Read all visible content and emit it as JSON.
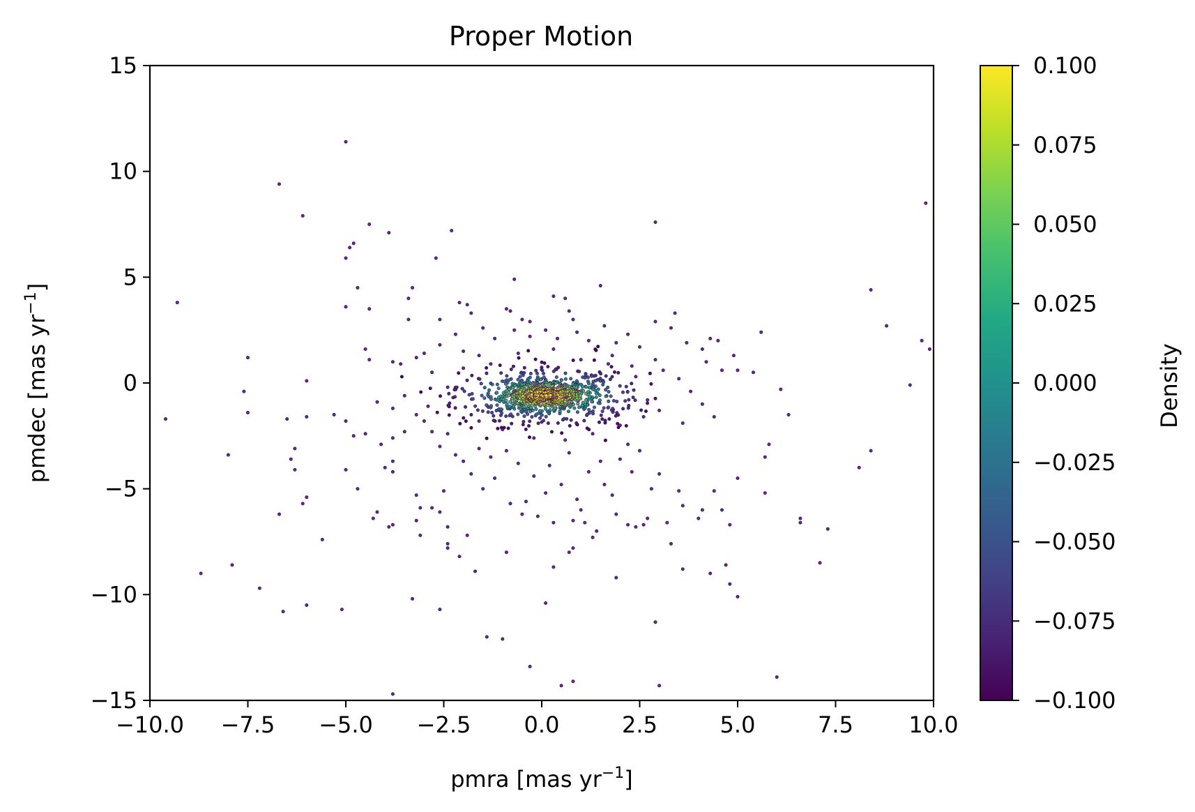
{
  "chart_data": {
    "type": "scatter",
    "title": "Proper Motion",
    "xlabel": "pmra [mas yr",
    "ylabel": "pmdec [mas yr",
    "label_unit_exponent": "−1",
    "label_close": "]",
    "xlim": [
      -10,
      10
    ],
    "ylim": [
      -15,
      15
    ],
    "xticks": [
      -10,
      -7.5,
      -5,
      -2.5,
      0,
      2.5,
      5,
      7.5,
      10
    ],
    "xtick_labels": [
      "−10.0",
      "−7.5",
      "−5.0",
      "−2.5",
      "0.0",
      "2.5",
      "5.0",
      "7.5",
      "10.0"
    ],
    "yticks": [
      -15,
      -10,
      -5,
      0,
      5,
      10,
      15
    ],
    "ytick_labels": [
      "−15",
      "−10",
      "−5",
      "0",
      "5",
      "10",
      "15"
    ],
    "grid": false,
    "colormap": "viridis",
    "colorbar": {
      "label": "Density",
      "range": [
        -0.1,
        0.1
      ],
      "ticks": [
        -0.1,
        -0.075,
        -0.05,
        -0.025,
        0,
        0.025,
        0.05,
        0.075,
        0.1
      ],
      "tick_labels": [
        "−0.100",
        "−0.075",
        "−0.050",
        "−0.025",
        "0.000",
        "0.025",
        "0.050",
        "0.075",
        "0.100"
      ]
    },
    "cluster_center": [
      0.1,
      -0.6
    ],
    "points": [
      [
        -5.0,
        11.4
      ],
      [
        -6.7,
        9.4
      ],
      [
        -6.1,
        7.9
      ],
      [
        -4.4,
        7.5
      ],
      [
        -3.9,
        7.1
      ],
      [
        -2.3,
        7.2
      ],
      [
        2.9,
        7.6
      ],
      [
        9.8,
        8.5
      ],
      [
        -9.3,
        3.8
      ],
      [
        -4.9,
        6.4
      ],
      [
        -4.8,
        6.6
      ],
      [
        -5.0,
        5.9
      ],
      [
        -2.7,
        5.9
      ],
      [
        -3.3,
        4.5
      ],
      [
        -4.7,
        4.5
      ],
      [
        -5.0,
        3.6
      ],
      [
        -4.4,
        3.5
      ],
      [
        -3.4,
        4.0
      ],
      [
        -3.4,
        3.0
      ],
      [
        -2.6,
        3.0
      ],
      [
        -2.1,
        3.8
      ],
      [
        -1.9,
        3.7
      ],
      [
        -1.8,
        3.3
      ],
      [
        -0.9,
        3.5
      ],
      [
        -0.8,
        3.4
      ],
      [
        -0.3,
        2.9
      ],
      [
        0.3,
        4.1
      ],
      [
        0.6,
        4.0
      ],
      [
        0.7,
        3.4
      ],
      [
        1.5,
        4.6
      ],
      [
        -0.7,
        4.9
      ],
      [
        2.9,
        2.9
      ],
      [
        3.4,
        3.3
      ],
      [
        3.3,
        2.6
      ],
      [
        4.3,
        2.1
      ],
      [
        4.5,
        2.0
      ],
      [
        5.6,
        2.4
      ],
      [
        8.4,
        4.4
      ],
      [
        8.8,
        2.7
      ],
      [
        9.7,
        2.0
      ],
      [
        9.9,
        1.6
      ],
      [
        -7.5,
        1.2
      ],
      [
        -4.5,
        1.6
      ],
      [
        -4.4,
        1.1
      ],
      [
        -3.8,
        1.0
      ],
      [
        -3.6,
        0.9
      ],
      [
        -3.2,
        1.2
      ],
      [
        3.7,
        1.9
      ],
      [
        4.1,
        1.6
      ],
      [
        4.2,
        1.0
      ],
      [
        4.6,
        0.6
      ],
      [
        4.9,
        1.3
      ],
      [
        5.0,
        0.6
      ],
      [
        5.4,
        0.5
      ],
      [
        -6.0,
        0.1
      ],
      [
        -7.6,
        -0.4
      ],
      [
        -9.6,
        -1.7
      ],
      [
        -7.5,
        -1.4
      ],
      [
        -6.5,
        -1.7
      ],
      [
        -6.0,
        -1.6
      ],
      [
        -5.3,
        -1.5
      ],
      [
        -5.0,
        -1.8
      ],
      [
        -4.8,
        -2.5
      ],
      [
        -4.5,
        -2.4
      ],
      [
        -4.1,
        -2.9
      ],
      [
        -3.8,
        -2.6
      ],
      [
        -3.5,
        -2.3
      ],
      [
        -3.2,
        -1.5
      ],
      [
        -3.0,
        -1.8
      ],
      [
        -2.8,
        -2.3
      ],
      [
        -2.6,
        -3.0
      ],
      [
        -2.4,
        -2.4
      ],
      [
        -8.0,
        -3.4
      ],
      [
        -6.3,
        -3.1
      ],
      [
        -6.4,
        -3.6
      ],
      [
        -6.3,
        -4.1
      ],
      [
        -5.6,
        -7.4
      ],
      [
        -6.0,
        -5.4
      ],
      [
        -6.1,
        -5.7
      ],
      [
        -6.7,
        -6.2
      ],
      [
        -5.0,
        -4.1
      ],
      [
        -4.7,
        -5.0
      ],
      [
        -4.0,
        -4.0
      ],
      [
        -3.8,
        -3.7
      ],
      [
        -3.8,
        -4.2
      ],
      [
        -4.2,
        -6.1
      ],
      [
        -4.3,
        -6.4
      ],
      [
        -3.9,
        -6.8
      ],
      [
        -3.8,
        -6.7
      ],
      [
        -3.2,
        -5.3
      ],
      [
        -3.1,
        -5.9
      ],
      [
        -3.2,
        -6.5
      ],
      [
        -3.1,
        -7.2
      ],
      [
        -2.6,
        -6.1
      ],
      [
        -2.8,
        -5.9
      ],
      [
        -2.4,
        -6.8
      ],
      [
        -2.4,
        -7.6
      ],
      [
        -2.4,
        -7.8
      ],
      [
        -2.1,
        -8.2
      ],
      [
        -1.9,
        -7.2
      ],
      [
        -1.7,
        -8.9
      ],
      [
        -0.9,
        -8.0
      ],
      [
        -0.5,
        -6.2
      ],
      [
        -0.1,
        -6.3
      ],
      [
        0.3,
        -6.6
      ],
      [
        0.8,
        -6.5
      ],
      [
        1.1,
        -6.6
      ],
      [
        1.4,
        -7.0
      ],
      [
        0.8,
        -7.8
      ],
      [
        0.7,
        -8.0
      ],
      [
        0.3,
        -8.7
      ],
      [
        1.9,
        -9.2
      ],
      [
        1.3,
        -7.3
      ],
      [
        2.2,
        -6.7
      ],
      [
        2.4,
        -6.8
      ],
      [
        2.6,
        -6.7
      ],
      [
        2.7,
        -6.4
      ],
      [
        3.3,
        -7.6
      ],
      [
        3.2,
        -6.6
      ],
      [
        4.0,
        -6.4
      ],
      [
        4.1,
        -6.0
      ],
      [
        3.5,
        -5.1
      ],
      [
        3.6,
        -5.8
      ],
      [
        4.4,
        -5.1
      ],
      [
        4.6,
        -6.0
      ],
      [
        4.8,
        -6.7
      ],
      [
        5.0,
        -4.5
      ],
      [
        5.7,
        -5.2
      ],
      [
        5.7,
        -3.5
      ],
      [
        5.8,
        -2.9
      ],
      [
        6.3,
        -1.5
      ],
      [
        6.1,
        -0.3
      ],
      [
        6.6,
        -6.4
      ],
      [
        6.6,
        -6.6
      ],
      [
        7.3,
        -6.9
      ],
      [
        7.1,
        -8.5
      ],
      [
        8.1,
        -4.0
      ],
      [
        8.4,
        -3.2
      ],
      [
        9.4,
        -0.1
      ],
      [
        3.6,
        -8.8
      ],
      [
        4.3,
        -9.0
      ],
      [
        4.7,
        -8.6
      ],
      [
        4.8,
        -9.5
      ],
      [
        5.0,
        -10.1
      ],
      [
        -8.7,
        -9.0
      ],
      [
        -7.9,
        -8.6
      ],
      [
        -7.2,
        -9.7
      ],
      [
        -6.6,
        -10.8
      ],
      [
        -6.0,
        -10.5
      ],
      [
        -5.1,
        -10.7
      ],
      [
        -3.3,
        -10.2
      ],
      [
        -2.6,
        -10.7
      ],
      [
        0.1,
        -10.4
      ],
      [
        2.9,
        -11.3
      ],
      [
        -1.4,
        -12.0
      ],
      [
        -1.0,
        -12.1
      ],
      [
        -0.3,
        -13.4
      ],
      [
        0.5,
        -14.3
      ],
      [
        0.8,
        -14.1
      ],
      [
        3.0,
        -14.3
      ],
      [
        6.0,
        -13.9
      ],
      [
        -3.8,
        -14.7
      ],
      [
        -1.5,
        -5.0
      ],
      [
        -1.2,
        -4.5
      ],
      [
        -0.9,
        -3.2
      ],
      [
        -0.6,
        -3.8
      ],
      [
        -0.2,
        -4.4
      ],
      [
        0.1,
        -5.2
      ],
      [
        0.5,
        -4.8
      ],
      [
        0.9,
        -5.5
      ],
      [
        1.2,
        -4.2
      ],
      [
        1.6,
        -4.8
      ],
      [
        1.8,
        -5.3
      ],
      [
        2.0,
        -3.6
      ],
      [
        2.3,
        -4.2
      ],
      [
        2.5,
        -3.2
      ],
      [
        2.8,
        -5.0
      ],
      [
        -1.8,
        -4.3
      ],
      [
        -2.0,
        -3.7
      ],
      [
        -1.3,
        -3.5
      ],
      [
        -0.4,
        -5.6
      ],
      [
        0.2,
        -3.9
      ],
      [
        0.7,
        -3.3
      ],
      [
        1.5,
        -3.7
      ],
      [
        2.2,
        -2.9
      ],
      [
        -2.2,
        -3.4
      ],
      [
        -1.6,
        -3.1
      ],
      [
        1.0,
        -6.0
      ],
      [
        -0.8,
        -5.7
      ],
      [
        1.9,
        -6.2
      ],
      [
        3.0,
        -4.3
      ],
      [
        -2.5,
        -5.1
      ],
      [
        -0.7,
        2.5
      ],
      [
        -0.3,
        2.2
      ],
      [
        0.1,
        2.5
      ],
      [
        0.4,
        2.1
      ],
      [
        0.9,
        2.4
      ],
      [
        1.2,
        2.0
      ],
      [
        1.6,
        2.7
      ],
      [
        1.9,
        1.9
      ],
      [
        2.2,
        2.3
      ],
      [
        2.5,
        1.7
      ],
      [
        -1.2,
        2.1
      ],
      [
        -1.5,
        2.6
      ],
      [
        -2.2,
        2.3
      ],
      [
        -2.6,
        1.8
      ],
      [
        -3.0,
        1.4
      ],
      [
        -2.0,
        1.5
      ],
      [
        -1.6,
        1.3
      ],
      [
        0.8,
        3.0
      ],
      [
        -0.5,
        3.0
      ],
      [
        1.8,
        1.3
      ],
      [
        2.9,
        1.1
      ],
      [
        3.1,
        0.6
      ],
      [
        3.5,
        0.2
      ],
      [
        3.8,
        -0.4
      ],
      [
        4.1,
        -1.0
      ],
      [
        4.4,
        -1.6
      ],
      [
        3.6,
        -1.9
      ],
      [
        3.0,
        -1.3
      ],
      [
        2.7,
        -0.8
      ],
      [
        2.4,
        0.3
      ],
      [
        -2.9,
        -1.1
      ],
      [
        -3.5,
        -0.6
      ],
      [
        -3.8,
        -1.2
      ],
      [
        -4.2,
        -0.9
      ],
      [
        -2.8,
        0.5
      ],
      [
        -2.4,
        -0.2
      ],
      [
        -2.0,
        0.7
      ],
      [
        -1.6,
        -1.8
      ],
      [
        -1.3,
        0.9
      ],
      [
        -1.0,
        -2.2
      ],
      [
        -0.6,
        1.4
      ],
      [
        -0.2,
        -2.6
      ],
      [
        0.3,
        1.6
      ],
      [
        0.6,
        -2.7
      ],
      [
        1.0,
        1.1
      ],
      [
        1.3,
        -2.4
      ],
      [
        1.7,
        0.9
      ],
      [
        2.0,
        -2.0
      ],
      [
        2.3,
        0.8
      ],
      [
        2.6,
        -1.6
      ]
    ]
  }
}
